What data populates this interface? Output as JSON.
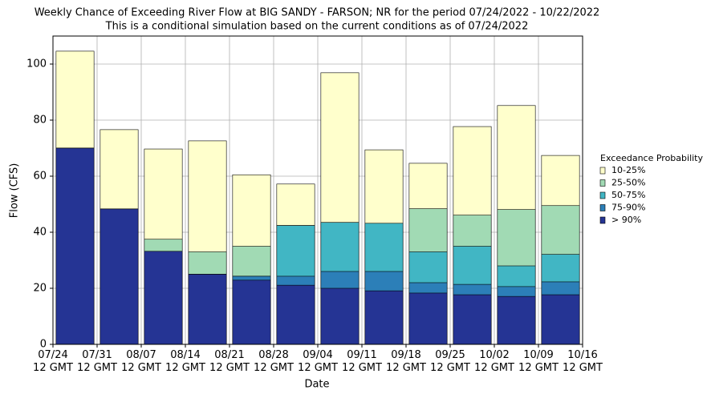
{
  "chart_data": {
    "type": "bar",
    "title": "Weekly Chance of Exceeding River Flow at BIG SANDY - FARSON; NR for the period 07/24/2022 - 10/22/2022",
    "subtitle": "This is a conditional simulation based on the current conditions as of 07/24/2022",
    "x_label": "Date",
    "y_label": "Flow (CFS)",
    "legend_title": "Exceedance Probability",
    "legend_position": "right",
    "categories": [
      null,
      null,
      null,
      null,
      null,
      null,
      null,
      null,
      null,
      null,
      null,
      null
    ],
    "xlim": [
      0,
      12
    ],
    "xticks": [
      {
        "value": 0,
        "label": "07/24\n12 GMT"
      },
      {
        "value": 1,
        "label": "07/31\n12 GMT"
      },
      {
        "value": 2,
        "label": "08/07\n12 GMT"
      },
      {
        "value": 3,
        "label": "08/14\n12 GMT"
      },
      {
        "value": 4,
        "label": "08/21\n12 GMT"
      },
      {
        "value": 5,
        "label": "08/28\n12 GMT"
      },
      {
        "value": 6,
        "label": "09/04\n12 GMT"
      },
      {
        "value": 7,
        "label": "09/11\n12 GMT"
      },
      {
        "value": 8,
        "label": "09/18\n12 GMT"
      },
      {
        "value": 9,
        "label": "09/25\n12 GMT"
      },
      {
        "value": 10,
        "label": "10/02\n12 GMT"
      },
      {
        "value": 11,
        "label": "10/09\n12 GMT"
      },
      {
        "value": 12,
        "label": "10/16\n12 GMT"
      }
    ],
    "ylim": [
      0,
      110
    ],
    "yticks": [
      0,
      20,
      40,
      60,
      80,
      100
    ],
    "grid": true,
    "series": [
      {
        "name": "10-25%",
        "color": "#ffffcc",
        "values": [
          104.6,
          76.6,
          69.7,
          72.6,
          60.5,
          57.2,
          96.9,
          69.4,
          64.6,
          77.7,
          85.2,
          67.4
        ]
      },
      {
        "name": "25-50%",
        "color": "#a1dab4",
        "values": [
          70,
          48.3,
          37.5,
          33,
          35,
          42.4,
          43.5,
          43.2,
          48.4,
          46.1,
          48.1,
          49.5
        ]
      },
      {
        "name": "50-75%",
        "color": "#41b6c4",
        "values": [
          70,
          48.3,
          33.2,
          25,
          24.3,
          42.4,
          43.5,
          43.2,
          33,
          35,
          28,
          32.1
        ]
      },
      {
        "name": "75-90%",
        "color": "#2c7fb8",
        "values": [
          70,
          48.3,
          33.2,
          25,
          24.3,
          24.3,
          26,
          26,
          22,
          21.4,
          20.6,
          22.3
        ]
      },
      {
        "name": "> 90%",
        "color": "#253494",
        "values": [
          70,
          48.3,
          33.2,
          25,
          22.9,
          21.1,
          20,
          19.1,
          18.3,
          17.7,
          17.1,
          17.7
        ]
      }
    ]
  }
}
